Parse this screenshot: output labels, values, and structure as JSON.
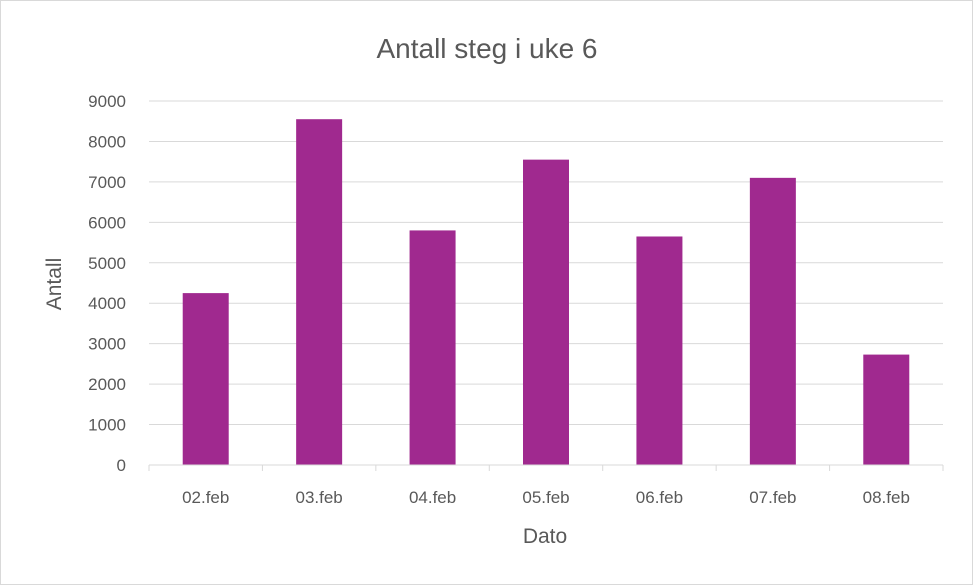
{
  "chart_data": {
    "type": "bar",
    "title": "Antall steg i uke 6",
    "xlabel": "Dato",
    "ylabel": "Antall",
    "categories": [
      "02.feb",
      "03.feb",
      "04.feb",
      "05.feb",
      "06.feb",
      "07.feb",
      "08.feb"
    ],
    "values": [
      4250,
      8550,
      5800,
      7550,
      5650,
      7100,
      2730
    ],
    "ylim": [
      0,
      9000
    ],
    "yticks": [
      0,
      1000,
      2000,
      3000,
      4000,
      5000,
      6000,
      7000,
      8000,
      9000
    ],
    "grid": true,
    "legend": false,
    "bar_color": "#A0298F",
    "text_color": "#595959",
    "grid_color": "#D9D9D9"
  }
}
